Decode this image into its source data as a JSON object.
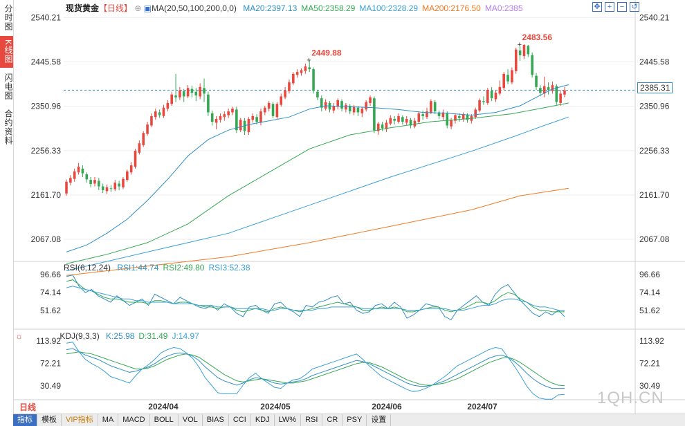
{
  "sidebar": {
    "tabs": [
      {
        "label": "分时图",
        "active": false
      },
      {
        "label": "K线图",
        "active": true
      },
      {
        "label": "闪电图",
        "active": false
      },
      {
        "label": "合约资料",
        "active": false
      }
    ]
  },
  "header": {
    "instrument": "现货黄金",
    "period_tag": "【日线】",
    "ma_prefix": "MA(20,50,100,200,0,0)",
    "ma": [
      {
        "label": "MA20:2397.13",
        "color": "#2f8fc4"
      },
      {
        "label": "MA50:2358.29",
        "color": "#34a853"
      },
      {
        "label": "MA100:2328.29",
        "color": "#3aa0d8"
      },
      {
        "label": "MA200:2176.50",
        "color": "#f07a22"
      },
      {
        "label": "MA0:2385",
        "color": "#b37feb"
      }
    ]
  },
  "price_axis": {
    "ticks": [
      "2540.21",
      "2445.58",
      "2350.96",
      "2256.33",
      "2161.70",
      "2067.08"
    ],
    "current": "2385.31"
  },
  "annotations": {
    "high1": "2449.88",
    "high2": "2483.56"
  },
  "rsi": {
    "title": "RSI(6,12,24)",
    "items": [
      {
        "label": "RSI1:44.74",
        "color": "#2f8fc4"
      },
      {
        "label": "RSI2:49.80",
        "color": "#34a853"
      },
      {
        "label": "RSI3:52.38",
        "color": "#3aa0d8"
      }
    ],
    "ticks": [
      "96.66",
      "74.14",
      "51.62"
    ]
  },
  "kdj": {
    "title": "KDJ(9,3,3)",
    "items": [
      {
        "label": "K:25.98",
        "color": "#2f8fc4"
      },
      {
        "label": "D:31.49",
        "color": "#34a853"
      },
      {
        "label": "J:14.97",
        "color": "#3aa0d8"
      }
    ],
    "ticks": [
      "113.92",
      "72.21",
      "30.49"
    ]
  },
  "dates": [
    "2024/04",
    "2024/05",
    "2024/06",
    "2024/07"
  ],
  "period": "日线",
  "bottom_tabs": [
    "指标",
    "模板",
    "VIP指标",
    "MA",
    "MACD",
    "BOLL",
    "VOL",
    "BIAS",
    "CCI",
    "KDJ",
    "LW%",
    "RSI",
    "CR",
    "PSY",
    "设置"
  ],
  "watermark": "1QH.CN",
  "colors": {
    "up": "#e8493f",
    "down": "#34a853"
  },
  "chart_data": {
    "type": "candlestick",
    "ylim": [
      2020,
      2560
    ],
    "candles": [
      [
        2165,
        2190,
        2160,
        2195
      ],
      [
        2188,
        2198,
        2182,
        2204
      ],
      [
        2196,
        2212,
        2190,
        2218
      ],
      [
        2210,
        2222,
        2205,
        2230
      ],
      [
        2218,
        2208,
        2200,
        2225
      ],
      [
        2206,
        2195,
        2188,
        2210
      ],
      [
        2194,
        2185,
        2178,
        2200
      ],
      [
        2186,
        2194,
        2180,
        2200
      ],
      [
        2192,
        2180,
        2172,
        2198
      ],
      [
        2180,
        2172,
        2166,
        2186
      ],
      [
        2170,
        2178,
        2164,
        2184
      ],
      [
        2176,
        2175,
        2168,
        2183
      ],
      [
        2174,
        2188,
        2170,
        2194
      ],
      [
        2186,
        2180,
        2172,
        2192
      ],
      [
        2178,
        2196,
        2174,
        2200
      ],
      [
        2194,
        2212,
        2190,
        2216
      ],
      [
        2210,
        2225,
        2205,
        2232
      ],
      [
        2222,
        2256,
        2218,
        2260
      ],
      [
        2252,
        2272,
        2248,
        2278
      ],
      [
        2268,
        2294,
        2264,
        2298
      ],
      [
        2292,
        2312,
        2288,
        2318
      ],
      [
        2310,
        2330,
        2306,
        2336
      ],
      [
        2328,
        2340,
        2322,
        2346
      ],
      [
        2338,
        2332,
        2326,
        2344
      ],
      [
        2330,
        2348,
        2326,
        2354
      ],
      [
        2346,
        2358,
        2340,
        2364
      ],
      [
        2356,
        2376,
        2352,
        2382
      ],
      [
        2374,
        2370,
        2360,
        2420
      ],
      [
        2370,
        2385,
        2364,
        2392
      ],
      [
        2383,
        2372,
        2360,
        2388
      ],
      [
        2372,
        2390,
        2368,
        2396
      ],
      [
        2388,
        2380,
        2370,
        2395
      ],
      [
        2382,
        2374,
        2362,
        2390
      ],
      [
        2372,
        2392,
        2366,
        2400
      ],
      [
        2390,
        2378,
        2360,
        2410
      ],
      [
        2376,
        2338,
        2330,
        2382
      ],
      [
        2336,
        2318,
        2310,
        2342
      ],
      [
        2316,
        2324,
        2302,
        2330
      ],
      [
        2322,
        2330,
        2316,
        2336
      ],
      [
        2328,
        2334,
        2320,
        2340
      ],
      [
        2332,
        2340,
        2326,
        2346
      ],
      [
        2338,
        2346,
        2332,
        2350
      ],
      [
        2344,
        2300,
        2294,
        2350
      ],
      [
        2300,
        2322,
        2296,
        2326
      ],
      [
        2320,
        2298,
        2290,
        2326
      ],
      [
        2296,
        2324,
        2290,
        2328
      ],
      [
        2322,
        2330,
        2316,
        2336
      ],
      [
        2328,
        2318,
        2312,
        2334
      ],
      [
        2316,
        2340,
        2310,
        2346
      ],
      [
        2338,
        2348,
        2332,
        2352
      ],
      [
        2346,
        2358,
        2340,
        2362
      ],
      [
        2356,
        2330,
        2326,
        2360
      ],
      [
        2328,
        2356,
        2324,
        2360
      ],
      [
        2354,
        2372,
        2350,
        2378
      ],
      [
        2370,
        2385,
        2366,
        2392
      ],
      [
        2383,
        2402,
        2378,
        2408
      ],
      [
        2400,
        2420,
        2396,
        2424
      ],
      [
        2418,
        2424,
        2412,
        2430
      ],
      [
        2422,
        2428,
        2416,
        2432
      ],
      [
        2426,
        2436,
        2420,
        2442
      ],
      [
        2434,
        2430,
        2424,
        2449
      ],
      [
        2430,
        2384,
        2378,
        2434
      ],
      [
        2382,
        2370,
        2364,
        2386
      ],
      [
        2368,
        2348,
        2340,
        2374
      ],
      [
        2346,
        2360,
        2342,
        2366
      ],
      [
        2358,
        2344,
        2338,
        2362
      ],
      [
        2342,
        2352,
        2336,
        2358
      ],
      [
        2350,
        2364,
        2344,
        2368
      ],
      [
        2362,
        2346,
        2340,
        2366
      ],
      [
        2344,
        2354,
        2338,
        2358
      ],
      [
        2352,
        2340,
        2334,
        2356
      ],
      [
        2338,
        2350,
        2332,
        2354
      ],
      [
        2348,
        2338,
        2330,
        2352
      ],
      [
        2336,
        2346,
        2328,
        2350
      ],
      [
        2344,
        2360,
        2340,
        2364
      ],
      [
        2358,
        2370,
        2352,
        2374
      ],
      [
        2368,
        2300,
        2294,
        2372
      ],
      [
        2298,
        2314,
        2290,
        2318
      ],
      [
        2312,
        2304,
        2298,
        2318
      ],
      [
        2302,
        2316,
        2296,
        2322
      ],
      [
        2314,
        2326,
        2310,
        2332
      ],
      [
        2324,
        2320,
        2312,
        2330
      ],
      [
        2318,
        2330,
        2314,
        2336
      ],
      [
        2328,
        2318,
        2312,
        2332
      ],
      [
        2316,
        2324,
        2310,
        2330
      ],
      [
        2322,
        2310,
        2304,
        2326
      ],
      [
        2308,
        2320,
        2304,
        2326
      ],
      [
        2318,
        2336,
        2314,
        2340
      ],
      [
        2334,
        2330,
        2322,
        2342
      ],
      [
        2328,
        2340,
        2324,
        2348
      ],
      [
        2338,
        2362,
        2334,
        2366
      ],
      [
        2360,
        2340,
        2334,
        2364
      ],
      [
        2338,
        2330,
        2324,
        2342
      ],
      [
        2328,
        2338,
        2322,
        2344
      ],
      [
        2336,
        2310,
        2304,
        2340
      ],
      [
        2308,
        2322,
        2302,
        2326
      ],
      [
        2320,
        2332,
        2314,
        2336
      ],
      [
        2330,
        2326,
        2318,
        2336
      ],
      [
        2324,
        2334,
        2318,
        2338
      ],
      [
        2332,
        2322,
        2316,
        2336
      ],
      [
        2320,
        2330,
        2314,
        2334
      ],
      [
        2328,
        2344,
        2324,
        2348
      ],
      [
        2342,
        2364,
        2338,
        2368
      ],
      [
        2362,
        2360,
        2354,
        2372
      ],
      [
        2358,
        2386,
        2354,
        2390
      ],
      [
        2384,
        2368,
        2362,
        2392
      ],
      [
        2366,
        2380,
        2360,
        2386
      ],
      [
        2378,
        2392,
        2374,
        2406
      ],
      [
        2390,
        2420,
        2386,
        2424
      ],
      [
        2418,
        2404,
        2398,
        2430
      ],
      [
        2402,
        2428,
        2398,
        2434
      ],
      [
        2426,
        2472,
        2420,
        2476
      ],
      [
        2470,
        2460,
        2448,
        2480
      ],
      [
        2458,
        2482,
        2452,
        2483
      ],
      [
        2480,
        2462,
        2456,
        2482
      ],
      [
        2460,
        2418,
        2412,
        2466
      ],
      [
        2416,
        2392,
        2386,
        2422
      ],
      [
        2390,
        2380,
        2372,
        2396
      ],
      [
        2378,
        2394,
        2370,
        2414
      ],
      [
        2392,
        2386,
        2376,
        2402
      ],
      [
        2384,
        2396,
        2378,
        2404
      ],
      [
        2394,
        2360,
        2354,
        2398
      ],
      [
        2358,
        2378,
        2352,
        2386
      ],
      [
        2376,
        2385,
        2370,
        2392
      ]
    ],
    "ma20": [
      [
        0,
        2040
      ],
      [
        5,
        2055
      ],
      [
        10,
        2080
      ],
      [
        15,
        2110
      ],
      [
        20,
        2150
      ],
      [
        25,
        2195
      ],
      [
        30,
        2245
      ],
      [
        35,
        2280
      ],
      [
        40,
        2300
      ],
      [
        45,
        2312
      ],
      [
        50,
        2320
      ],
      [
        55,
        2328
      ],
      [
        60,
        2345
      ],
      [
        64,
        2352
      ],
      [
        70,
        2350
      ],
      [
        76,
        2348
      ],
      [
        82,
        2344
      ],
      [
        88,
        2338
      ],
      [
        94,
        2336
      ],
      [
        100,
        2332
      ],
      [
        106,
        2338
      ],
      [
        112,
        2352
      ],
      [
        116,
        2370
      ],
      [
        120,
        2388
      ],
      [
        124,
        2397
      ]
    ],
    "ma50": [
      [
        0,
        2015
      ],
      [
        10,
        2035
      ],
      [
        20,
        2060
      ],
      [
        30,
        2100
      ],
      [
        40,
        2160
      ],
      [
        50,
        2210
      ],
      [
        60,
        2260
      ],
      [
        70,
        2290
      ],
      [
        80,
        2305
      ],
      [
        90,
        2318
      ],
      [
        100,
        2325
      ],
      [
        110,
        2335
      ],
      [
        118,
        2348
      ],
      [
        124,
        2358
      ]
    ],
    "ma100": [
      [
        0,
        2000
      ],
      [
        20,
        2040
      ],
      [
        40,
        2080
      ],
      [
        60,
        2140
      ],
      [
        80,
        2200
      ],
      [
        100,
        2255
      ],
      [
        110,
        2285
      ],
      [
        118,
        2310
      ],
      [
        124,
        2328
      ]
    ],
    "ma200": [
      [
        0,
        1990
      ],
      [
        20,
        2010
      ],
      [
        40,
        2030
      ],
      [
        60,
        2060
      ],
      [
        80,
        2095
      ],
      [
        100,
        2130
      ],
      [
        112,
        2160
      ],
      [
        124,
        2176
      ]
    ],
    "rsi1": [
      94,
      96,
      82,
      74,
      78,
      70,
      66,
      62,
      70,
      64,
      58,
      62,
      66,
      58,
      72,
      68,
      64,
      60,
      68,
      64,
      60,
      56,
      54,
      58,
      52,
      60,
      56,
      48,
      44,
      56,
      58,
      52,
      48,
      60,
      62,
      54,
      50,
      44,
      58,
      56,
      62,
      64,
      68,
      70,
      60,
      62,
      52,
      48,
      50,
      58,
      60,
      54,
      62,
      56,
      42,
      46,
      52,
      60,
      58,
      56,
      44,
      40,
      52,
      58,
      64,
      70,
      62,
      58,
      72,
      80,
      84,
      74,
      64,
      56,
      48,
      44,
      50,
      46,
      52,
      44
    ],
    "rsi2": [
      88,
      90,
      84,
      78,
      76,
      72,
      68,
      66,
      66,
      64,
      62,
      62,
      62,
      60,
      64,
      64,
      62,
      60,
      62,
      62,
      60,
      58,
      56,
      56,
      54,
      56,
      56,
      52,
      50,
      52,
      54,
      52,
      50,
      54,
      56,
      54,
      52,
      50,
      52,
      54,
      56,
      58,
      60,
      62,
      60,
      58,
      56,
      52,
      52,
      54,
      56,
      54,
      56,
      54,
      50,
      50,
      52,
      54,
      56,
      56,
      52,
      50,
      52,
      54,
      58,
      62,
      62,
      60,
      64,
      70,
      74,
      72,
      66,
      62,
      56,
      52,
      52,
      50,
      50,
      50
    ],
    "rsi3": [
      80,
      82,
      80,
      78,
      76,
      74,
      72,
      70,
      68,
      66,
      66,
      64,
      64,
      62,
      62,
      62,
      62,
      60,
      60,
      60,
      60,
      58,
      58,
      58,
      56,
      56,
      56,
      54,
      54,
      54,
      54,
      54,
      52,
      52,
      54,
      54,
      52,
      52,
      52,
      52,
      54,
      54,
      56,
      56,
      56,
      56,
      56,
      54,
      54,
      54,
      54,
      54,
      54,
      54,
      52,
      52,
      52,
      54,
      54,
      54,
      54,
      52,
      52,
      52,
      54,
      56,
      58,
      58,
      60,
      64,
      66,
      66,
      64,
      62,
      58,
      56,
      56,
      54,
      52,
      52
    ],
    "k": [
      98,
      100,
      94,
      88,
      84,
      80,
      74,
      68,
      64,
      60,
      56,
      58,
      62,
      66,
      72,
      80,
      86,
      90,
      92,
      90,
      86,
      78,
      66,
      56,
      46,
      40,
      36,
      32,
      36,
      42,
      46,
      44,
      40,
      36,
      34,
      36,
      38,
      40,
      44,
      50,
      54,
      58,
      62,
      66,
      70,
      74,
      78,
      76,
      72,
      66,
      60,
      54,
      48,
      42,
      36,
      32,
      30,
      30,
      32,
      36,
      40,
      46,
      52,
      58,
      64,
      70,
      76,
      82,
      86,
      88,
      84,
      76,
      66,
      54,
      44,
      36,
      30,
      26,
      26,
      26
    ],
    "d": [
      90,
      92,
      94,
      92,
      90,
      86,
      82,
      78,
      74,
      70,
      66,
      62,
      62,
      64,
      68,
      74,
      80,
      84,
      88,
      90,
      88,
      84,
      76,
      68,
      60,
      52,
      46,
      40,
      38,
      40,
      42,
      44,
      42,
      40,
      38,
      36,
      36,
      38,
      40,
      44,
      48,
      52,
      56,
      60,
      64,
      68,
      72,
      74,
      74,
      70,
      66,
      60,
      54,
      48,
      42,
      38,
      34,
      32,
      32,
      34,
      36,
      40,
      44,
      50,
      56,
      62,
      68,
      74,
      78,
      82,
      84,
      80,
      74,
      66,
      58,
      50,
      42,
      36,
      32,
      31
    ],
    "j": [
      110,
      112,
      94,
      80,
      72,
      66,
      58,
      48,
      44,
      40,
      36,
      50,
      62,
      70,
      80,
      92,
      98,
      102,
      100,
      92,
      82,
      66,
      46,
      32,
      18,
      16,
      16,
      16,
      32,
      46,
      54,
      44,
      36,
      28,
      26,
      36,
      42,
      44,
      52,
      62,
      66,
      70,
      74,
      78,
      82,
      86,
      90,
      80,
      68,
      58,
      48,
      42,
      36,
      30,
      24,
      20,
      22,
      26,
      32,
      40,
      48,
      58,
      68,
      74,
      80,
      86,
      92,
      98,
      102,
      100,
      84,
      68,
      50,
      30,
      16,
      8,
      6,
      6,
      14,
      15
    ]
  }
}
